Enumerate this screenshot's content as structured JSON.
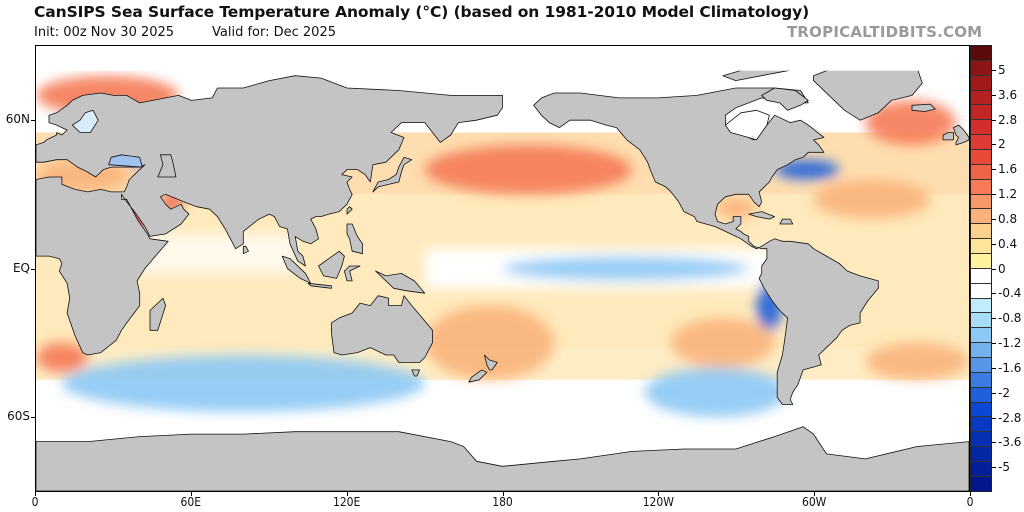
{
  "header": {
    "title": "CanSIPS Sea Surface Temperature Anomaly (°C) (based on 1981-2010 Model Climatology)",
    "init": "Init: 00z Nov 30 2025",
    "valid": "Valid for: Dec 2025",
    "brand": "TROPICALTIDBITS.COM"
  },
  "map": {
    "projection": "cylindrical, 0° centered on left edge",
    "land_color": "#c4c4c4",
    "ice_color": "#ffffff",
    "y_ticks": [
      {
        "label": "60N",
        "lat": 60
      },
      {
        "label": "EQ",
        "lat": 0
      },
      {
        "label": "60S",
        "lat": -60
      }
    ],
    "x_ticks": [
      {
        "label": "0",
        "lon": 0
      },
      {
        "label": "60E",
        "lon": 60
      },
      {
        "label": "120E",
        "lon": 120
      },
      {
        "label": "180",
        "lon": 180
      },
      {
        "label": "120W",
        "lon": 240
      },
      {
        "label": "60W",
        "lon": 300
      },
      {
        "label": "0",
        "lon": 360
      }
    ],
    "anomaly_regions": [
      {
        "name": "north-pacific-warm-blob",
        "lon": [
          150,
          230
        ],
        "lat": [
          30,
          50
        ],
        "level": 1.6
      },
      {
        "name": "northeast-atlantic-warm",
        "lon": [
          320,
          355
        ],
        "lat": [
          50,
          68
        ],
        "level": 1.6
      },
      {
        "name": "barents-norwegian-warm",
        "lon": [
          0,
          55
        ],
        "lat": [
          62,
          78
        ],
        "level": 1.6
      },
      {
        "name": "mediterranean-warm",
        "lon": [
          0,
          36
        ],
        "lat": [
          31,
          44
        ],
        "level": 1.2
      },
      {
        "name": "red-sea-warm",
        "lon": [
          33,
          43
        ],
        "lat": [
          13,
          28
        ],
        "level": 2.0
      },
      {
        "name": "persian-gulf-warm",
        "lon": [
          48,
          57
        ],
        "lat": [
          24,
          30
        ],
        "level": 2.0
      },
      {
        "name": "equatorial-pacific-la-nina-cool",
        "lon": [
          180,
          275
        ],
        "lat": [
          -5,
          5
        ],
        "level": -0.8
      },
      {
        "name": "peru-coast-cool",
        "lon": [
          278,
          288
        ],
        "lat": [
          -25,
          -5
        ],
        "level": -2.0
      },
      {
        "name": "gulf-stream-cool",
        "lon": [
          285,
          310
        ],
        "lat": [
          36,
          44
        ],
        "level": -2.0
      },
      {
        "name": "black-sea-cool",
        "lon": [
          36,
          42
        ],
        "lat": [
          41,
          46
        ],
        "level": -2.0
      },
      {
        "name": "baltic-cool",
        "lon": [
          17,
          25
        ],
        "lat": [
          55,
          65
        ],
        "level": -1.2
      },
      {
        "name": "southern-indian-cool",
        "lon": [
          10,
          150
        ],
        "lat": [
          -58,
          -35
        ],
        "level": -0.8
      },
      {
        "name": "south-pacific-cool",
        "lon": [
          235,
          290
        ],
        "lat": [
          -60,
          -40
        ],
        "level": -0.8
      },
      {
        "name": "southwest-pacific-warm",
        "lon": [
          150,
          200
        ],
        "lat": [
          -45,
          -15
        ],
        "level": 1.2
      },
      {
        "name": "southeast-pacific-warm",
        "lon": [
          245,
          285
        ],
        "lat": [
          -40,
          -20
        ],
        "level": 1.2
      },
      {
        "name": "south-atlantic-warm",
        "lon": [
          320,
          360
        ],
        "lat": [
          -45,
          -30
        ],
        "level": 1.2
      },
      {
        "name": "southeast-atlantic-warm",
        "lon": [
          0,
          20
        ],
        "lat": [
          -42,
          -30
        ],
        "level": 1.6
      },
      {
        "name": "gulf-of-mexico-warm",
        "lon": [
          262,
          278
        ],
        "lat": [
          20,
          29
        ],
        "level": 1.2
      },
      {
        "name": "north-atlantic-subtropical-warm",
        "lon": [
          300,
          345
        ],
        "lat": [
          20,
          36
        ],
        "level": 1.2
      }
    ]
  },
  "colorbar": {
    "labels": [
      "5",
      "3.6",
      "2.8",
      "2",
      "1.6",
      "1.2",
      "0.8",
      "0.4",
      "0",
      "-0.4",
      "-0.8",
      "-1.2",
      "-1.6",
      "-2",
      "-2.8",
      "-3.6",
      "-5"
    ],
    "label_band_index": [
      2,
      4,
      6,
      8,
      9,
      10,
      11,
      12,
      13,
      14,
      15,
      16,
      17,
      18,
      20,
      22,
      24
    ],
    "bands": [
      {
        "color": "#5a0a0a"
      },
      {
        "color": "#8c1414"
      },
      {
        "color": "#a01a1a"
      },
      {
        "color": "#b41f1f"
      },
      {
        "color": "#c32525"
      },
      {
        "color": "#d42d2d"
      },
      {
        "color": "#df3a33"
      },
      {
        "color": "#e84a3a"
      },
      {
        "color": "#ef6347"
      },
      {
        "color": "#f57a55"
      },
      {
        "color": "#f89767"
      },
      {
        "color": "#fab27a"
      },
      {
        "color": "#fdd08c"
      },
      {
        "color": "#fee59a"
      },
      {
        "color": "#fff29e"
      },
      {
        "color": "#ffffff"
      },
      {
        "color": "#ffffff"
      },
      {
        "color": "#c0ecfc"
      },
      {
        "color": "#a6dcf8"
      },
      {
        "color": "#8cc8f4"
      },
      {
        "color": "#72b0ee"
      },
      {
        "color": "#5596e8"
      },
      {
        "color": "#3a7ce2"
      },
      {
        "color": "#2060dc"
      },
      {
        "color": "#0a48d4"
      },
      {
        "color": "#0838c4"
      },
      {
        "color": "#0630b4"
      },
      {
        "color": "#0426a4"
      },
      {
        "color": "#031e96"
      },
      {
        "color": "#02188a"
      }
    ]
  }
}
